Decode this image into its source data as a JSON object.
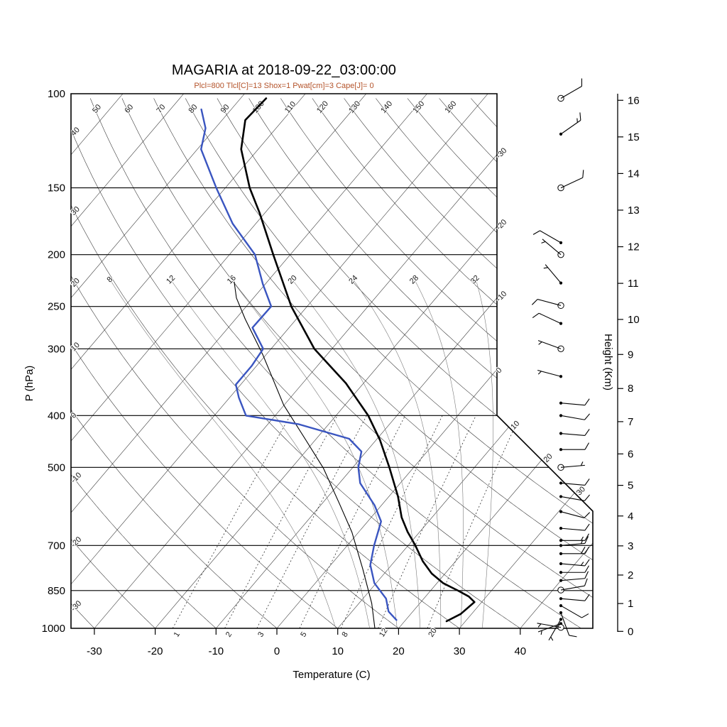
{
  "chart_data": {
    "type": "skewt_log_p",
    "title": "MAGARIA at 2018-09-22_03:00:00",
    "subtitle": "Plcl=800 Tlcl[C]=13 Shox=1 Pwat[cm]=3 Cape[J]= 0",
    "station": "MAGARIA",
    "time": "2018-09-22_03:00:00",
    "indices": {
      "Plcl": 800,
      "Tlcl_C": 13,
      "Shox": 1,
      "Pwat_cm": 3,
      "Cape_J": 0
    },
    "axes": {
      "x_label": "Temperature (C)",
      "y_left_label": "P (hPa)",
      "y_right_label": "Height (Km)",
      "pressure_ticks_hpa": [
        100,
        150,
        200,
        250,
        300,
        400,
        500,
        700,
        850,
        1000
      ],
      "temp_ticks_c": [
        -30,
        -20,
        -10,
        0,
        10,
        20,
        30,
        40
      ],
      "temp_range_c": [
        -30,
        40
      ],
      "height_ticks_km": [
        0,
        1,
        2,
        3,
        4,
        5,
        6,
        7,
        8,
        9,
        10,
        11,
        12,
        13,
        14,
        15,
        16
      ]
    },
    "background_labels": {
      "isotherms_c": [
        -30,
        -20,
        -10,
        0,
        10,
        20,
        30
      ],
      "dry_adiabats_left_c": [
        40,
        30,
        20,
        10,
        0,
        -10,
        -20,
        -30
      ],
      "dry_adiabats_top_c": [
        50,
        60,
        70,
        80,
        90,
        100,
        110,
        120,
        130,
        140,
        150,
        160
      ],
      "moist_adiabats_c": [
        8,
        12,
        16,
        20,
        24,
        28,
        32
      ],
      "mixing_ratio_gkg": [
        1,
        2,
        3,
        5,
        8,
        12,
        20
      ]
    },
    "series": {
      "temperature_c": [
        [
          970,
          26.9
        ],
        [
          940,
          28.2
        ],
        [
          893,
          28.8
        ],
        [
          872,
          27.1
        ],
        [
          850,
          24.5
        ],
        [
          823,
          21.0
        ],
        [
          790,
          17.8
        ],
        [
          749,
          14.6
        ],
        [
          700,
          11.2
        ],
        [
          660,
          8.0
        ],
        [
          620,
          5.0
        ],
        [
          567,
          1.5
        ],
        [
          500,
          -4.0
        ],
        [
          444,
          -9.4
        ],
        [
          400,
          -14.7
        ],
        [
          348,
          -22.9
        ],
        [
          300,
          -32.9
        ],
        [
          250,
          -42.6
        ],
        [
          200,
          -52.8
        ],
        [
          167,
          -60.9
        ],
        [
          150,
          -66.0
        ],
        [
          127,
          -72.8
        ],
        [
          112,
          -76.2
        ],
        [
          102,
          -75.8
        ]
      ],
      "dewpoint_c": [
        [
          965,
          18.5
        ],
        [
          930,
          16.0
        ],
        [
          880,
          13.8
        ],
        [
          823,
          9.7
        ],
        [
          761,
          6.5
        ],
        [
          700,
          4.4
        ],
        [
          631,
          2.2
        ],
        [
          589,
          -1.1
        ],
        [
          535,
          -6.6
        ],
        [
          500,
          -9.1
        ],
        [
          467,
          -10.8
        ],
        [
          442,
          -14.6
        ],
        [
          415,
          -25.0
        ],
        [
          400,
          -34.8
        ],
        [
          370,
          -38.5
        ],
        [
          350,
          -40.8
        ],
        [
          323,
          -40.8
        ],
        [
          300,
          -41.3
        ],
        [
          274,
          -46.0
        ],
        [
          250,
          -45.9
        ],
        [
          227,
          -50.4
        ],
        [
          200,
          -55.8
        ],
        [
          175,
          -63.8
        ],
        [
          150,
          -71.5
        ],
        [
          127,
          -79.4
        ],
        [
          116,
          -81.6
        ],
        [
          107,
          -84.9
        ]
      ],
      "parcel_c": [
        [
          1000,
          16.1
        ],
        [
          898,
          12.1
        ],
        [
          774,
          5.8
        ],
        [
          661,
          -1.1
        ],
        [
          585,
          -7.1
        ],
        [
          502,
          -14.7
        ],
        [
          444,
          -21.6
        ],
        [
          382,
          -30.1
        ],
        [
          308,
          -40.5
        ],
        [
          264,
          -48.4
        ],
        [
          241,
          -52.8
        ],
        [
          225,
          -55.4
        ]
      ]
    },
    "wind_barbs": {
      "columns": [
        "pressure_hpa",
        "speed_kt",
        "dir_deg_from",
        "circle_symbol"
      ],
      "rows": [
        [
          102,
          10,
          60,
          1
        ],
        [
          119,
          15,
          55,
          0
        ],
        [
          150,
          10,
          65,
          1
        ],
        [
          190,
          12,
          300,
          0
        ],
        [
          200,
          5,
          310,
          1
        ],
        [
          226,
          3,
          320,
          0
        ],
        [
          249,
          10,
          285,
          1
        ],
        [
          269,
          8,
          295,
          0
        ],
        [
          300,
          7,
          290,
          1
        ],
        [
          338,
          5,
          285,
          0
        ],
        [
          379,
          8,
          95,
          0
        ],
        [
          400,
          10,
          100,
          0
        ],
        [
          432,
          12,
          95,
          0
        ],
        [
          463,
          10,
          90,
          0
        ],
        [
          500,
          6,
          85,
          1
        ],
        [
          535,
          8,
          95,
          0
        ],
        [
          567,
          10,
          100,
          0
        ],
        [
          605,
          8,
          105,
          0
        ],
        [
          650,
          12,
          95,
          0
        ],
        [
          685,
          15,
          90,
          0
        ],
        [
          700,
          15,
          85,
          0
        ],
        [
          725,
          18,
          90,
          0
        ],
        [
          757,
          15,
          95,
          0
        ],
        [
          786,
          12,
          90,
          0
        ],
        [
          814,
          10,
          85,
          0
        ],
        [
          848,
          10,
          80,
          1
        ],
        [
          880,
          8,
          95,
          0
        ],
        [
          907,
          10,
          120,
          0
        ],
        [
          935,
          8,
          160,
          0
        ],
        [
          962,
          6,
          210,
          0
        ],
        [
          980,
          5,
          250,
          0
        ],
        [
          996,
          4,
          280,
          1
        ]
      ]
    },
    "colors": {
      "temperature": "#000000",
      "dewpoint": "#3a55c0",
      "parcel": "#000000",
      "subtitle": "#b4532a",
      "background_lines": "#2b2b2b",
      "moist_adiabats": "#7a7a7a",
      "mixing_ratio": "#333333"
    }
  }
}
